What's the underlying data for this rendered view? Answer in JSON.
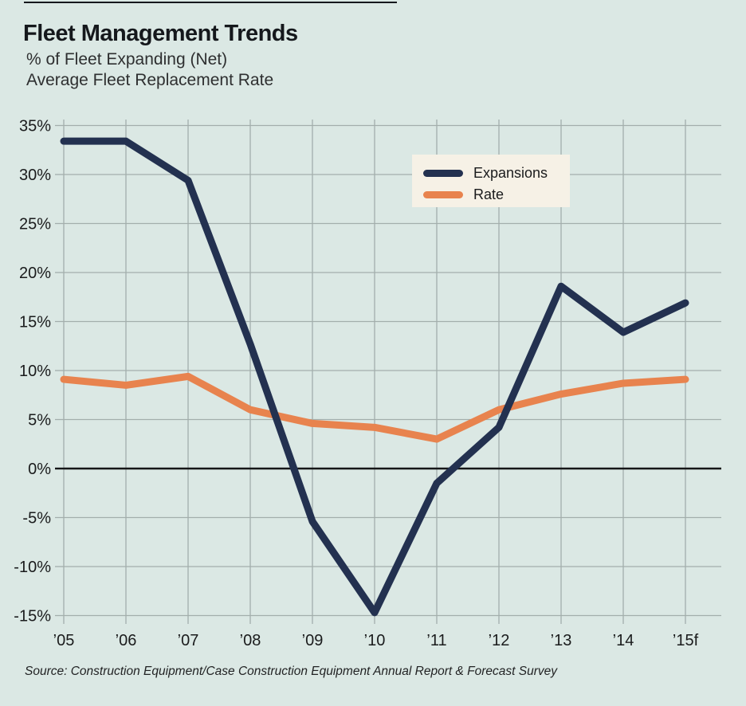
{
  "header": {
    "title": "Fleet Management Trends",
    "subtitle1": "% of Fleet Expanding (Net)",
    "subtitle2": "Average Fleet Replacement Rate"
  },
  "source": "Source: Construction Equipment/Case Construction Equipment Annual Report & Forecast Survey",
  "colors": {
    "background": "#dbe8e4",
    "expansions": "#233150",
    "rate": "#e8834e",
    "legend_bg": "#f6f1e6",
    "gridline": "#a3aeac",
    "zero_line": "#161718",
    "text": "#1a1b1c"
  },
  "legend": {
    "items": [
      {
        "label": "Expansions",
        "color": "#233150"
      },
      {
        "label": "Rate",
        "color": "#e8834e"
      }
    ]
  },
  "chart_data": {
    "type": "line",
    "title": "Fleet Management Trends",
    "categories": [
      "’05",
      "’06",
      "’07",
      "’08",
      "’09",
      "’10",
      "’11",
      "’12",
      "’13",
      "’14",
      "’15f"
    ],
    "series": [
      {
        "name": "Expansions",
        "color": "#233150",
        "values": [
          33.4,
          33.4,
          29.4,
          12.7,
          -5.4,
          -14.7,
          -1.5,
          4.2,
          18.6,
          13.9,
          16.9
        ]
      },
      {
        "name": "Rate",
        "color": "#e8834e",
        "values": [
          9.1,
          8.5,
          9.4,
          6.0,
          4.6,
          4.2,
          3.0,
          6.0,
          7.6,
          8.7,
          9.1
        ]
      }
    ],
    "xlabel": "",
    "ylabel": "",
    "ylim": [
      -15,
      35
    ],
    "y_ticks": [
      "35%",
      "30%",
      "25%",
      "20%",
      "15%",
      "10%",
      "5%",
      "0%",
      "-5%",
      "-10%",
      "-15%"
    ],
    "y_tick_values": [
      35,
      30,
      25,
      20,
      15,
      10,
      5,
      0,
      -5,
      -10,
      -15
    ],
    "grid": true,
    "legend_position": "top-right"
  }
}
